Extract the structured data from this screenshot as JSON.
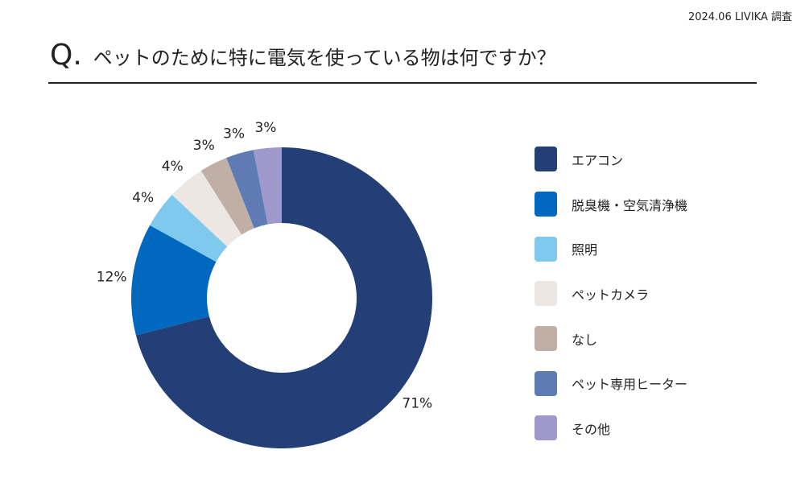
{
  "source": "2024.06 LIVIKA 調査",
  "title": {
    "q": "Q.",
    "text": "ペットのために特に電気を使っている物は何ですか？"
  },
  "chart_data": {
    "type": "pie",
    "donut": true,
    "legend": "right",
    "categories": [
      "エアコン",
      "脱臭機・空気清浄機",
      "照明",
      "ペットカメラ",
      "なし",
      "ペット専用ヒーター",
      "その他"
    ],
    "values": [
      71,
      12,
      4,
      4,
      3,
      3,
      3
    ],
    "labels": [
      "71%",
      "12%",
      "4%",
      "4%",
      "3%",
      "3%",
      "3%"
    ],
    "colors": [
      "#233f75",
      "#0068be",
      "#7fc8ee",
      "#ece7e3",
      "#c0afa5",
      "#5f7bb4",
      "#9e98cc"
    ]
  }
}
